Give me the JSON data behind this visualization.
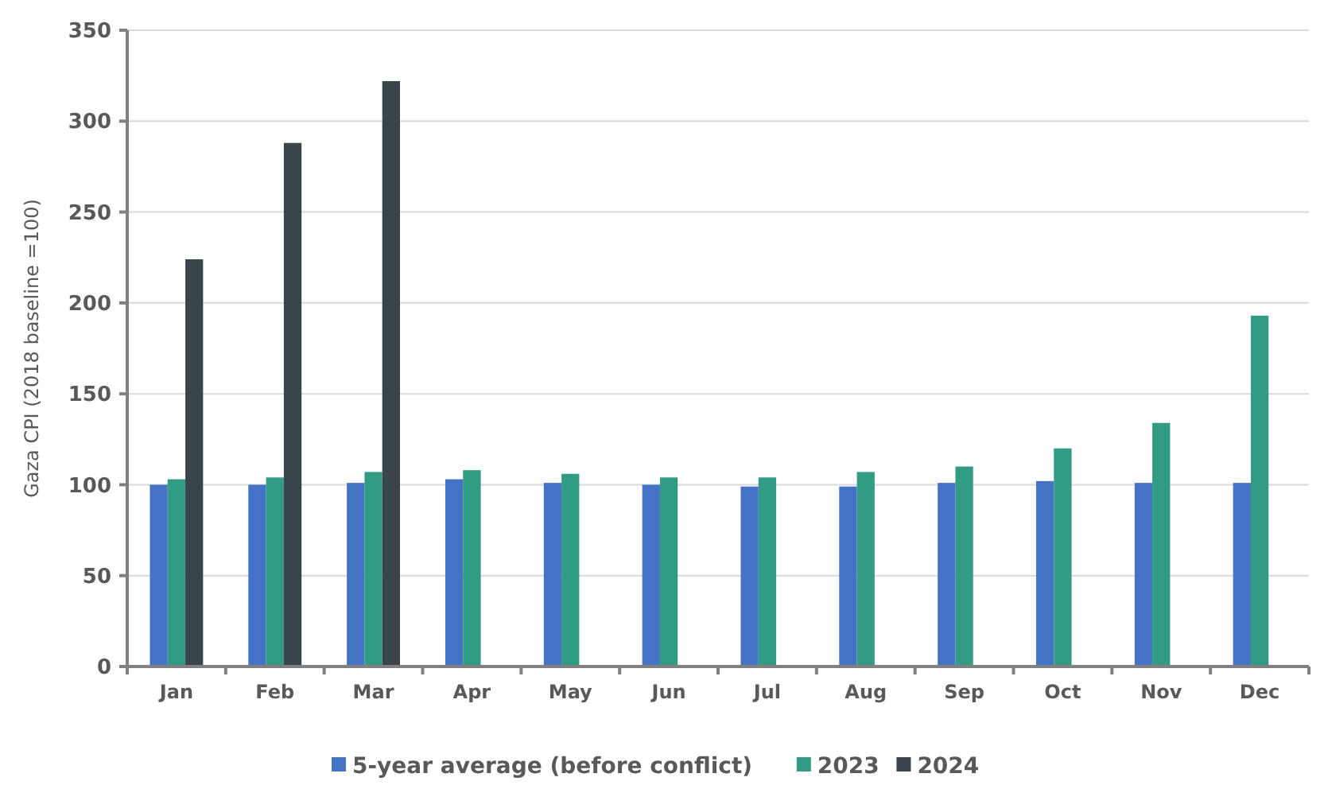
{
  "chart_data": {
    "type": "bar",
    "ylabel": "Gaza CPI (2018 baseline =100)",
    "categories": [
      "Jan",
      "Feb",
      "Mar",
      "Apr",
      "May",
      "Jun",
      "Jul",
      "Aug",
      "Sep",
      "Oct",
      "Nov",
      "Dec"
    ],
    "series": [
      {
        "name": "5-year average (before conflict)",
        "color": "#4472c4",
        "values": [
          100,
          100,
          101,
          103,
          101,
          100,
          99,
          99,
          101,
          102,
          101,
          101
        ]
      },
      {
        "name": "2023",
        "color": "#319b84",
        "values": [
          103,
          104,
          107,
          108,
          106,
          104,
          104,
          107,
          110,
          120,
          134,
          193
        ]
      },
      {
        "name": "2024",
        "color": "#39444b",
        "values": [
          224,
          288,
          322,
          null,
          null,
          null,
          null,
          null,
          null,
          null,
          null,
          null
        ]
      }
    ],
    "ylim": [
      0,
      350
    ],
    "yticks": [
      0,
      50,
      100,
      150,
      200,
      250,
      300,
      350
    ],
    "grid": "y",
    "legend": "bottom"
  }
}
